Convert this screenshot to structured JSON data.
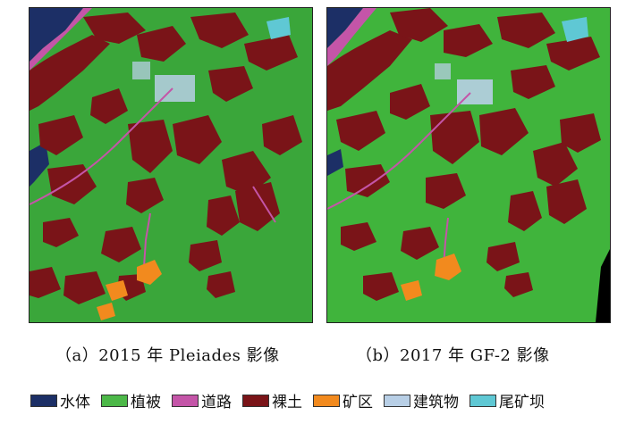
{
  "panels": [
    {
      "id": "a",
      "caption": "（a）2015 年 Pleiades 影像"
    },
    {
      "id": "b",
      "caption": "（b）2017 年 GF-2 影像"
    }
  ],
  "legend": [
    {
      "label": "水体",
      "color": "#1c2f66"
    },
    {
      "label": "植被",
      "color": "#4cb848"
    },
    {
      "label": "道路",
      "color": "#c455a8"
    },
    {
      "label": "裸土",
      "color": "#7a1418"
    },
    {
      "label": "矿区",
      "color": "#f28a1e"
    },
    {
      "label": "建筑物",
      "color": "#b8cfe6"
    },
    {
      "label": "尾矿坝",
      "color": "#5fc8d4"
    }
  ]
}
